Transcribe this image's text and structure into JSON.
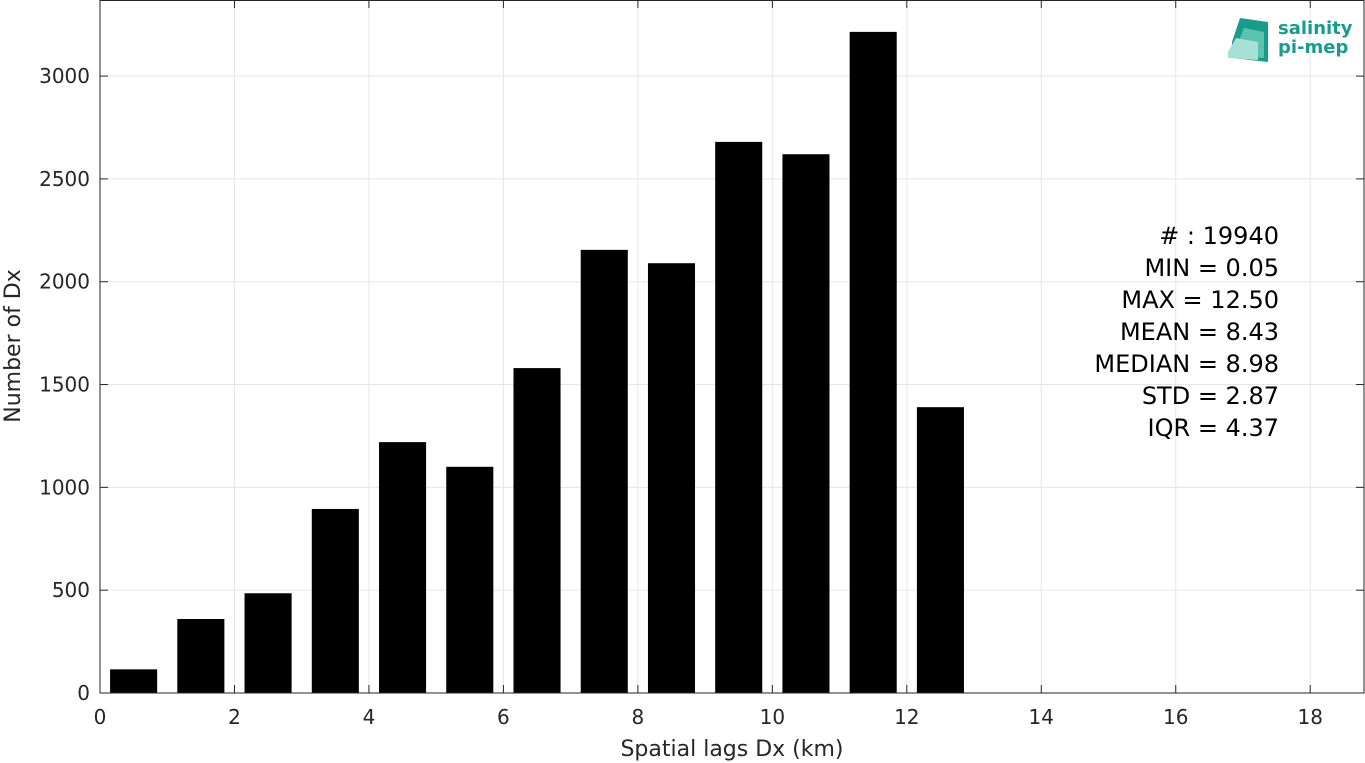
{
  "chart_data": {
    "type": "bar",
    "x": [
      0.5,
      1.5,
      2.5,
      3.5,
      4.5,
      5.5,
      6.5,
      7.5,
      8.5,
      9.5,
      10.5,
      11.5,
      12.5
    ],
    "values": [
      115,
      360,
      485,
      895,
      1220,
      1100,
      1580,
      2155,
      2090,
      2680,
      2620,
      3215,
      1390
    ],
    "bar_width": 0.7,
    "xlabel": "Spatial lags Dx (km)",
    "ylabel": "Number of Dx",
    "xlim": [
      0,
      18.8
    ],
    "ylim": [
      0,
      3370
    ],
    "xticks": [
      0,
      2,
      4,
      6,
      8,
      10,
      12,
      14,
      16,
      18
    ],
    "yticks": [
      0,
      500,
      1000,
      1500,
      2000,
      2500,
      3000
    ],
    "grid": true,
    "bar_color": "#000000",
    "annotations": [
      "# : 19940",
      "MIN = 0.05",
      "MAX =  12.50",
      "MEAN = 8.43",
      "MEDIAN = 8.98",
      "STD = 2.87",
      "IQR = 4.37"
    ]
  },
  "logo": {
    "line1": "salinity",
    "line2": "pi-mep",
    "color": "#1a9c8c"
  }
}
